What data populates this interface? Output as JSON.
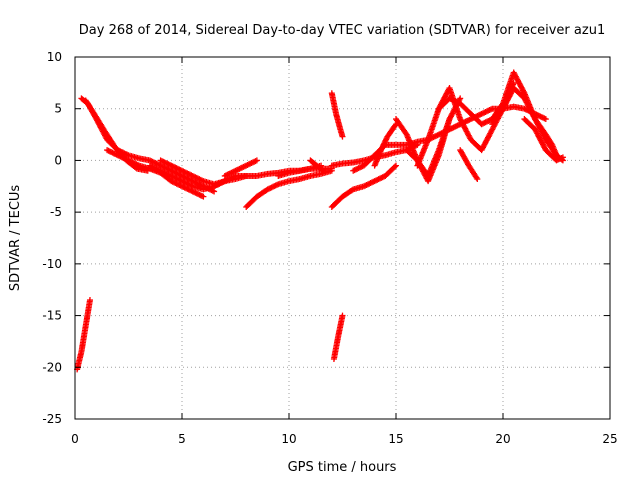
{
  "chart_data": {
    "type": "scatter",
    "title": "Day 268 of 2014, Sidereal Day-to-day VTEC variation (SDTVAR) for receiver azu1",
    "xlabel": "GPS time / hours",
    "ylabel": "SDTVAR / TECUs",
    "xlim": [
      0,
      25
    ],
    "ylim": [
      -25,
      10
    ],
    "xticks": [
      "0",
      "5",
      "10",
      "15",
      "20",
      "25"
    ],
    "yticks": [
      "10",
      "5",
      "0",
      "-5",
      "-10",
      "-15",
      "-20",
      "-25"
    ],
    "grid": true,
    "marker": "+",
    "color": "#ff0000",
    "tracks": [
      {
        "x": [
          0.3,
          0.6,
          1.0,
          1.5,
          2.0,
          2.5,
          3.0,
          3.5,
          4.0,
          4.5,
          5.0,
          5.5,
          6.0,
          6.5
        ],
        "y": [
          6.0,
          5.5,
          4.0,
          2.0,
          1.0,
          0.5,
          0.2,
          0.0,
          -0.5,
          -1.0,
          -1.5,
          -2.0,
          -2.5,
          -3.0
        ]
      },
      {
        "x": [
          0.5,
          0.9,
          1.4,
          1.9,
          2.4,
          2.9,
          3.4
        ],
        "y": [
          5.8,
          4.5,
          2.8,
          1.2,
          0.0,
          -0.8,
          -1.0
        ]
      },
      {
        "x": [
          1.5,
          2.0,
          2.5,
          3.0,
          3.5,
          4.0,
          4.5,
          5.0,
          5.5,
          6.0
        ],
        "y": [
          1.0,
          0.5,
          0.0,
          -0.5,
          -0.8,
          -1.2,
          -2.0,
          -2.5,
          -3.0,
          -3.5
        ]
      },
      {
        "x": [
          3.5,
          4.0,
          4.5,
          5.0,
          5.5,
          6.0,
          6.5,
          7.0
        ],
        "y": [
          -0.5,
          -1.0,
          -1.5,
          -2.0,
          -2.5,
          -2.8,
          -2.5,
          -2.0
        ]
      },
      {
        "x": [
          4.0,
          4.5,
          5.0,
          5.5,
          6.0,
          6.5,
          7.0,
          7.5,
          8.0
        ],
        "y": [
          0.0,
          -0.5,
          -1.0,
          -1.5,
          -2.0,
          -2.3,
          -2.0,
          -1.5,
          -1.5
        ]
      },
      {
        "x": [
          6.5,
          7.0,
          7.5,
          8.0,
          8.5,
          9.0,
          9.5,
          10.0,
          10.5,
          11.0,
          11.5,
          12.0
        ],
        "y": [
          -2.5,
          -2.0,
          -1.8,
          -1.5,
          -1.5,
          -1.3,
          -1.2,
          -1.0,
          -1.0,
          -0.8,
          -0.8,
          -0.8
        ]
      },
      {
        "x": [
          7.0,
          7.5,
          8.0,
          8.5
        ],
        "y": [
          -1.5,
          -1.0,
          -0.5,
          0.0
        ]
      },
      {
        "x": [
          8.0,
          8.5,
          9.0,
          9.5,
          10.0,
          10.5,
          11.0,
          11.5,
          12.0
        ],
        "y": [
          -4.5,
          -3.5,
          -2.8,
          -2.3,
          -2.0,
          -1.8,
          -1.5,
          -1.3,
          -1.0
        ]
      },
      {
        "x": [
          9.5,
          10.0,
          10.5,
          11.0,
          11.5
        ],
        "y": [
          -1.5,
          -1.2,
          -1.0,
          -0.8,
          -0.5
        ]
      },
      {
        "x": [
          11.0,
          11.3,
          11.6
        ],
        "y": [
          0.0,
          -0.5,
          -1.0
        ]
      },
      {
        "x": [
          12.0,
          12.2,
          12.4,
          12.5
        ],
        "y": [
          6.5,
          4.5,
          3.0,
          2.3
        ]
      },
      {
        "x": [
          12.0,
          12.5,
          13.0,
          13.5,
          14.0,
          14.5,
          15.0
        ],
        "y": [
          -4.5,
          -3.5,
          -2.8,
          -2.5,
          -2.0,
          -1.5,
          -0.5
        ]
      },
      {
        "x": [
          12.0,
          12.5,
          13.0,
          13.5,
          14.0,
          14.5,
          15.0,
          15.5,
          16.0
        ],
        "y": [
          -0.5,
          -0.3,
          -0.2,
          0.0,
          0.3,
          0.5,
          0.8,
          1.0,
          1.5
        ]
      },
      {
        "x": [
          13.0,
          13.5,
          14.0,
          14.5,
          15.0,
          15.5,
          16.0,
          16.5,
          17.0,
          17.5,
          18.0,
          18.5,
          19.0,
          19.5,
          20.0,
          20.5,
          21.0,
          21.5,
          22.0
        ],
        "y": [
          -1.0,
          -0.5,
          0.5,
          1.5,
          1.5,
          1.5,
          1.8,
          2.0,
          2.5,
          3.0,
          3.5,
          4.0,
          4.5,
          5.0,
          5.0,
          5.2,
          5.0,
          4.5,
          4.0
        ]
      },
      {
        "x": [
          14.0,
          14.3,
          14.6,
          15.0
        ],
        "y": [
          -0.5,
          1.0,
          2.3,
          3.5
        ]
      },
      {
        "x": [
          15.0,
          15.5,
          16.0,
          16.5,
          17.0,
          17.5,
          18.0
        ],
        "y": [
          4.0,
          2.5,
          0.0,
          -2.0,
          0.5,
          4.0,
          6.0
        ]
      },
      {
        "x": [
          15.5,
          16.0,
          16.5,
          17.0,
          17.5
        ],
        "y": [
          1.0,
          0.0,
          -1.5,
          1.0,
          4.0
        ]
      },
      {
        "x": [
          16.0,
          16.5,
          17.0,
          17.5,
          18.0,
          18.5,
          19.0,
          19.5,
          20.0,
          20.5
        ],
        "y": [
          -0.5,
          2.0,
          5.0,
          7.0,
          4.0,
          2.0,
          1.0,
          3.0,
          5.0,
          7.5
        ]
      },
      {
        "x": [
          17.0,
          17.5,
          18.0,
          18.5,
          19.0,
          19.5,
          20.0,
          20.5,
          21.0,
          21.5,
          22.0,
          22.5
        ],
        "y": [
          5.0,
          6.0,
          5.5,
          4.5,
          3.5,
          4.0,
          5.5,
          8.5,
          6.5,
          4.0,
          2.0,
          0.5
        ]
      },
      {
        "x": [
          18.0,
          18.4,
          18.8
        ],
        "y": [
          1.0,
          -0.5,
          -1.8
        ]
      },
      {
        "x": [
          19.5,
          20.0,
          20.5,
          21.0,
          21.5,
          22.0,
          22.3,
          22.5,
          22.8
        ],
        "y": [
          3.5,
          5.0,
          7.0,
          6.0,
          4.0,
          2.5,
          1.5,
          0.5,
          0.0
        ]
      },
      {
        "x": [
          21.0,
          21.5,
          22.0,
          22.5,
          22.8
        ],
        "y": [
          4.0,
          3.0,
          1.0,
          0.0,
          0.3
        ]
      },
      {
        "x": [
          0.1,
          0.3,
          0.5,
          0.7
        ],
        "y": [
          -20.2,
          -18.5,
          -16.0,
          -13.5
        ]
      },
      {
        "x": [
          12.1,
          12.3,
          12.5
        ],
        "y": [
          -19.2,
          -17.0,
          -15.0
        ]
      }
    ]
  }
}
